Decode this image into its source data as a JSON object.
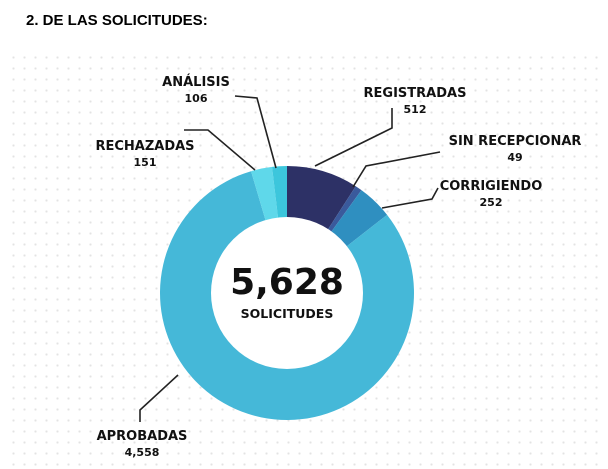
{
  "heading": "2. DE LAS SOLICITUDES:",
  "chart_data": {
    "type": "pie",
    "variant": "donut",
    "center_total": "5,628",
    "center_label": "SOLICITUDES",
    "slices": [
      {
        "name": "REGISTRADAS",
        "value_label": "512",
        "value": 512,
        "color": "#2d3166"
      },
      {
        "name": "SIN RECEPCIONAR",
        "value_label": "49",
        "value": 49,
        "color": "#3a5a9c"
      },
      {
        "name": "CORRIGIENDO",
        "value_label": "252",
        "value": 252,
        "color": "#2f8fc0"
      },
      {
        "name": "APROBADAS",
        "value_label": "4,558",
        "value": 4558,
        "color": "#45b8d8"
      },
      {
        "name": "RECHAZADAS",
        "value_label": "151",
        "value": 151,
        "color": "#5fd8ea"
      },
      {
        "name": "ANÁLISIS",
        "value_label": "106",
        "value": 106,
        "color": "#3cc6dc"
      }
    ]
  }
}
